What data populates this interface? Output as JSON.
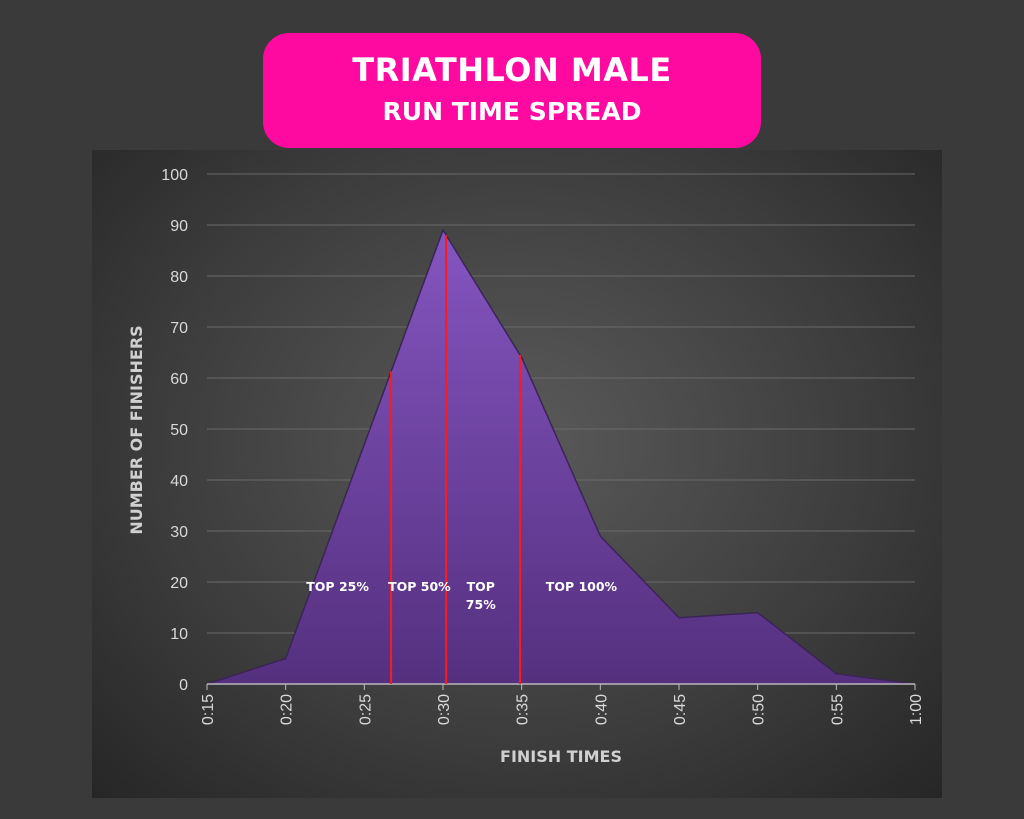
{
  "title": {
    "line1": "TRIATHLON MALE",
    "line2": "RUN TIME SPREAD"
  },
  "colors": {
    "title_bg": "#ff0aa0",
    "area": "#6a3fa0",
    "marker": "#ff1a1a"
  },
  "chart_data": {
    "type": "area",
    "title": "TRIATHLON MALE RUN TIME SPREAD",
    "xlabel": "FINISH TIMES",
    "ylabel": "NUMBER OF FINISHERS",
    "categories": [
      "0:15",
      "0:20",
      "0:25",
      "0:30",
      "0:35",
      "0:40",
      "0:45",
      "0:50",
      "0:55",
      "1:00"
    ],
    "values": [
      0,
      5,
      47,
      89,
      64,
      29,
      13,
      14,
      2,
      0
    ],
    "ylim": [
      0,
      100
    ],
    "yticks": [
      "0",
      "10",
      "20",
      "30",
      "40",
      "50",
      "60",
      "70",
      "80",
      "90",
      "100"
    ],
    "grid": true,
    "markers": [
      {
        "minutes": 26.7,
        "label": "TOP 25%"
      },
      {
        "minutes": 30.2,
        "label": "TOP 50%"
      },
      {
        "minutes": 34.9,
        "label": "TOP 75%"
      }
    ],
    "annotations": [
      {
        "text": "TOP 25%",
        "minutes": 23.3,
        "y": 19
      },
      {
        "text": "TOP 50%",
        "minutes": 28.5,
        "y": 19
      },
      {
        "text": "TOP",
        "minutes": 32.4,
        "y": 19
      },
      {
        "text": "75%",
        "minutes": 32.4,
        "y": 15.5
      },
      {
        "text": "TOP 100%",
        "minutes": 38.8,
        "y": 19
      }
    ]
  }
}
